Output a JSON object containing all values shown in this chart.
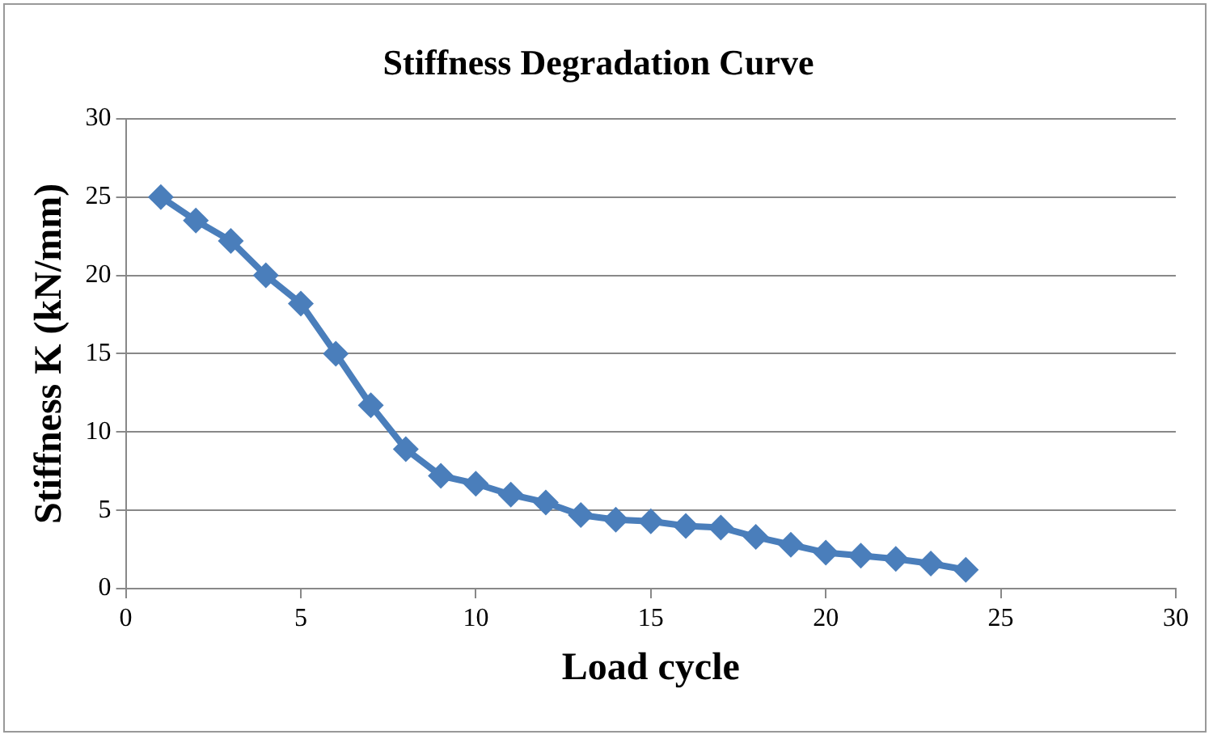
{
  "chart_data": {
    "type": "line",
    "title": "Stiffness Degradation Curve",
    "xlabel": "Load cycle",
    "ylabel": "Stiffness K (kN/mm)",
    "x": [
      1,
      2,
      3,
      4,
      5,
      6,
      7,
      8,
      9,
      10,
      11,
      12,
      13,
      14,
      15,
      16,
      17,
      18,
      19,
      20,
      21,
      22,
      23,
      24
    ],
    "series": [
      {
        "color": "#4a7ebb",
        "values": [
          25,
          23.5,
          22.2,
          20,
          18.2,
          15,
          11.7,
          8.9,
          7.2,
          6.7,
          6,
          5.5,
          4.7,
          4.4,
          4.3,
          4,
          3.9,
          3.3,
          2.8,
          2.3,
          2.1,
          1.9,
          1.6,
          1.2
        ]
      }
    ],
    "xlim": [
      0,
      30
    ],
    "xticks": [
      0,
      5,
      10,
      15,
      20,
      25,
      30
    ],
    "ylim": [
      0,
      30
    ],
    "yticks": [
      0,
      5,
      10,
      15,
      20,
      25,
      30
    ],
    "grid": "y",
    "legend": false,
    "marker": "diamond",
    "line_style": "solid"
  }
}
